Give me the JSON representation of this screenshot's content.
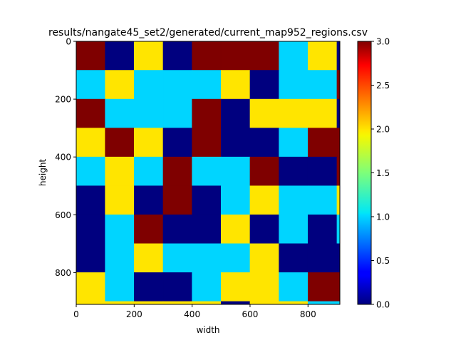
{
  "chart_data": {
    "type": "heatmap",
    "title": "results/nangate45_set2/generated/current_map952_regions.csv",
    "xlabel": "width",
    "ylabel": "height",
    "xlim": [
      0,
      910
    ],
    "ylim": [
      910,
      0
    ],
    "x_ticks": [
      0,
      200,
      400,
      600,
      800
    ],
    "y_ticks": [
      0,
      200,
      400,
      600,
      800
    ],
    "x_edges": [
      0,
      100,
      200,
      300,
      400,
      500,
      600,
      700,
      800,
      900,
      910
    ],
    "y_edges": [
      0,
      100,
      200,
      300,
      400,
      500,
      600,
      700,
      800,
      900,
      910
    ],
    "values": [
      [
        3,
        0,
        2,
        0,
        3,
        3,
        3,
        1,
        2,
        0
      ],
      [
        1,
        2,
        1,
        1,
        1,
        2,
        0,
        1,
        1,
        3
      ],
      [
        3,
        1,
        1,
        1,
        3,
        0,
        2,
        2,
        2,
        0
      ],
      [
        2,
        3,
        2,
        0,
        3,
        0,
        0,
        1,
        3,
        3
      ],
      [
        1,
        2,
        1,
        3,
        1,
        1,
        3,
        0,
        0,
        3
      ],
      [
        0,
        2,
        0,
        3,
        0,
        1,
        2,
        1,
        1,
        2
      ],
      [
        0,
        1,
        3,
        0,
        0,
        2,
        0,
        1,
        0,
        1
      ],
      [
        0,
        1,
        2,
        1,
        1,
        1,
        2,
        0,
        0,
        0
      ],
      [
        2,
        1,
        0,
        0,
        1,
        2,
        2,
        1,
        3,
        3
      ],
      [
        2,
        2,
        2,
        2,
        2,
        0,
        2,
        2,
        1,
        1
      ]
    ],
    "colormap": "jet",
    "clim": [
      0,
      3
    ],
    "colorbar_ticks": [
      "0.0",
      "0.5",
      "1.0",
      "1.5",
      "2.0",
      "2.5",
      "3.0"
    ],
    "grid": false
  }
}
